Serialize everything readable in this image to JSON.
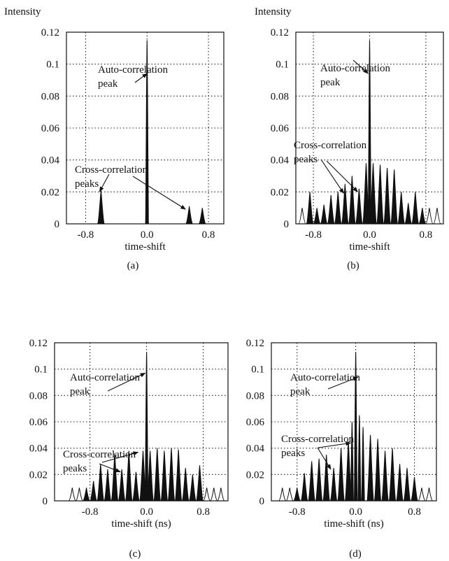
{
  "chart_data": [
    {
      "type": "line",
      "panel_label": "(a)",
      "ylabel": "Intensity",
      "xlabel": "time-shift",
      "xlim": [
        -1.05,
        1.0
      ],
      "ylim": [
        0,
        0.12
      ],
      "yticks": [
        "0",
        "0.02",
        "0.04",
        "0.06",
        "0.08",
        "0.1",
        "0.12"
      ],
      "xticks": [
        {
          "value": -0.8,
          "label": "-0.8"
        },
        {
          "value": 0.0,
          "label": "0.0"
        },
        {
          "value": 0.8,
          "label": "0.8"
        }
      ],
      "grid": true,
      "annotations": [
        {
          "text": [
            "Auto-correlation",
            "peak"
          ],
          "targets": [
            {
              "x": 0.02,
              "y": 0.095
            }
          ]
        },
        {
          "text": [
            "Cross-correlation",
            "peaks"
          ],
          "targets": [
            {
              "x": -0.6,
              "y": 0.021
            },
            {
              "x": 0.52,
              "y": 0.01
            }
          ]
        }
      ],
      "peaks": [
        {
          "x": -0.6,
          "y": 0.021,
          "filled": true
        },
        {
          "x": 0.0,
          "y": 0.115,
          "filled": true
        },
        {
          "x": 0.55,
          "y": 0.011,
          "filled": true
        },
        {
          "x": 0.72,
          "y": 0.01,
          "filled": true
        }
      ]
    },
    {
      "type": "line",
      "panel_label": "(b)",
      "ylabel": "Intensity",
      "xlabel": "time-shift",
      "xlim": [
        -1.05,
        1.05
      ],
      "ylim": [
        0,
        0.12
      ],
      "yticks": [
        "0",
        "0.02",
        "0.04",
        "0.06",
        "0.08",
        "0.1",
        "0.12"
      ],
      "xticks": [
        {
          "value": -0.8,
          "label": "-0.8"
        },
        {
          "value": 0.0,
          "label": "0.0"
        },
        {
          "value": 0.8,
          "label": "0.8"
        }
      ],
      "grid": true,
      "annotations": [
        {
          "text": [
            "Auto-correlation",
            "peak"
          ],
          "targets": [
            {
              "x": 0.0,
              "y": 0.095
            }
          ]
        },
        {
          "text": [
            "Cross-correlation",
            "peaks"
          ],
          "targets": [
            {
              "x": -0.35,
              "y": 0.02
            },
            {
              "x": -0.15,
              "y": 0.021
            }
          ]
        }
      ],
      "peaks": [
        {
          "x": -0.96,
          "y": 0.01,
          "filled": false
        },
        {
          "x": -0.85,
          "y": 0.02,
          "filled": true
        },
        {
          "x": -0.75,
          "y": 0.01,
          "filled": true
        },
        {
          "x": -0.65,
          "y": 0.012,
          "filled": true
        },
        {
          "x": -0.55,
          "y": 0.018,
          "filled": true
        },
        {
          "x": -0.45,
          "y": 0.02,
          "filled": true
        },
        {
          "x": -0.35,
          "y": 0.025,
          "filled": true
        },
        {
          "x": -0.25,
          "y": 0.03,
          "filled": true
        },
        {
          "x": -0.15,
          "y": 0.022,
          "filled": true
        },
        {
          "x": -0.05,
          "y": 0.038,
          "filled": true
        },
        {
          "x": 0.0,
          "y": 0.115,
          "filled": true
        },
        {
          "x": 0.05,
          "y": 0.038,
          "filled": true
        },
        {
          "x": 0.15,
          "y": 0.037,
          "filled": true
        },
        {
          "x": 0.25,
          "y": 0.035,
          "filled": true
        },
        {
          "x": 0.35,
          "y": 0.034,
          "filled": true
        },
        {
          "x": 0.45,
          "y": 0.02,
          "filled": true
        },
        {
          "x": 0.55,
          "y": 0.013,
          "filled": true
        },
        {
          "x": 0.65,
          "y": 0.02,
          "filled": true
        },
        {
          "x": 0.75,
          "y": 0.01,
          "filled": true
        },
        {
          "x": 0.85,
          "y": 0.01,
          "filled": false
        },
        {
          "x": 0.96,
          "y": 0.01,
          "filled": false
        }
      ]
    },
    {
      "type": "line",
      "panel_label": "(c)",
      "ylabel": "",
      "xlabel": "time-shift (ns)",
      "xlim": [
        -1.3,
        1.15
      ],
      "ylim": [
        0,
        0.12
      ],
      "yticks": [
        "0",
        "0.02",
        "0.04",
        "0.06",
        "0.08",
        "0.1",
        "0.12"
      ],
      "xticks": [
        {
          "value": -0.8,
          "label": "-0.8"
        },
        {
          "value": 0.0,
          "label": "0.0"
        },
        {
          "value": 0.8,
          "label": "0.8"
        }
      ],
      "grid": true,
      "annotations": [
        {
          "text": [
            "Auto-correlation",
            "peak"
          ],
          "targets": [
            {
              "x": 0.0,
              "y": 0.098
            }
          ]
        },
        {
          "text": [
            "Cross-correlation",
            "peaks"
          ],
          "targets": [
            {
              "x": -0.35,
              "y": 0.023
            },
            {
              "x": -0.1,
              "y": 0.038
            }
          ]
        }
      ],
      "peaks": [
        {
          "x": -1.05,
          "y": 0.01,
          "filled": false
        },
        {
          "x": -0.95,
          "y": 0.01,
          "filled": false
        },
        {
          "x": -0.85,
          "y": 0.01,
          "filled": true
        },
        {
          "x": -0.75,
          "y": 0.015,
          "filled": true
        },
        {
          "x": -0.65,
          "y": 0.028,
          "filled": true
        },
        {
          "x": -0.55,
          "y": 0.024,
          "filled": true
        },
        {
          "x": -0.45,
          "y": 0.036,
          "filled": true
        },
        {
          "x": -0.35,
          "y": 0.024,
          "filled": true
        },
        {
          "x": -0.25,
          "y": 0.038,
          "filled": true
        },
        {
          "x": -0.15,
          "y": 0.022,
          "filled": true
        },
        {
          "x": -0.05,
          "y": 0.038,
          "filled": true
        },
        {
          "x": 0.0,
          "y": 0.113,
          "filled": true
        },
        {
          "x": 0.05,
          "y": 0.038,
          "filled": true
        },
        {
          "x": 0.15,
          "y": 0.04,
          "filled": true
        },
        {
          "x": 0.25,
          "y": 0.038,
          "filled": true
        },
        {
          "x": 0.35,
          "y": 0.04,
          "filled": true
        },
        {
          "x": 0.45,
          "y": 0.039,
          "filled": true
        },
        {
          "x": 0.55,
          "y": 0.025,
          "filled": true
        },
        {
          "x": 0.65,
          "y": 0.02,
          "filled": true
        },
        {
          "x": 0.75,
          "y": 0.027,
          "filled": true
        },
        {
          "x": 0.85,
          "y": 0.01,
          "filled": false
        },
        {
          "x": 0.95,
          "y": 0.01,
          "filled": false
        },
        {
          "x": 1.05,
          "y": 0.01,
          "filled": false
        }
      ]
    },
    {
      "type": "line",
      "panel_label": "(d)",
      "ylabel": "",
      "xlabel": "time-shift (ns)",
      "xlim": [
        -1.15,
        1.1
      ],
      "ylim": [
        0,
        0.12
      ],
      "yticks": [
        "0",
        "0.02",
        "0.04",
        "0.06",
        "0.08",
        "0.1",
        "0.12"
      ],
      "xticks": [
        {
          "value": -0.8,
          "label": "-0.8"
        },
        {
          "value": 0.0,
          "label": "0.0"
        },
        {
          "value": 0.8,
          "label": "0.8"
        }
      ],
      "grid": true,
      "annotations": [
        {
          "text": [
            "Auto-correlation",
            "peak"
          ],
          "targets": [
            {
              "x": 0.05,
              "y": 0.095
            }
          ]
        },
        {
          "text": [
            "Cross-correlation",
            "peaks"
          ],
          "targets": [
            {
              "x": -0.32,
              "y": 0.025
            },
            {
              "x": -0.05,
              "y": 0.045
            }
          ]
        }
      ],
      "peaks": [
        {
          "x": -1.0,
          "y": 0.01,
          "filled": false
        },
        {
          "x": -0.9,
          "y": 0.01,
          "filled": false
        },
        {
          "x": -0.8,
          "y": 0.01,
          "filled": true
        },
        {
          "x": -0.7,
          "y": 0.021,
          "filled": true
        },
        {
          "x": -0.6,
          "y": 0.03,
          "filled": true
        },
        {
          "x": -0.5,
          "y": 0.032,
          "filled": true
        },
        {
          "x": -0.4,
          "y": 0.035,
          "filled": true
        },
        {
          "x": -0.3,
          "y": 0.025,
          "filled": true
        },
        {
          "x": -0.2,
          "y": 0.04,
          "filled": true
        },
        {
          "x": -0.1,
          "y": 0.045,
          "filled": true
        },
        {
          "x": -0.05,
          "y": 0.06,
          "filled": true
        },
        {
          "x": 0.0,
          "y": 0.113,
          "filled": true
        },
        {
          "x": 0.05,
          "y": 0.065,
          "filled": true
        },
        {
          "x": 0.1,
          "y": 0.056,
          "filled": true
        },
        {
          "x": 0.2,
          "y": 0.05,
          "filled": true
        },
        {
          "x": 0.3,
          "y": 0.047,
          "filled": true
        },
        {
          "x": 0.4,
          "y": 0.038,
          "filled": true
        },
        {
          "x": 0.5,
          "y": 0.04,
          "filled": true
        },
        {
          "x": 0.6,
          "y": 0.028,
          "filled": true
        },
        {
          "x": 0.7,
          "y": 0.025,
          "filled": true
        },
        {
          "x": 0.8,
          "y": 0.018,
          "filled": true
        },
        {
          "x": 0.9,
          "y": 0.01,
          "filled": false
        },
        {
          "x": 1.0,
          "y": 0.01,
          "filled": false
        }
      ]
    }
  ]
}
